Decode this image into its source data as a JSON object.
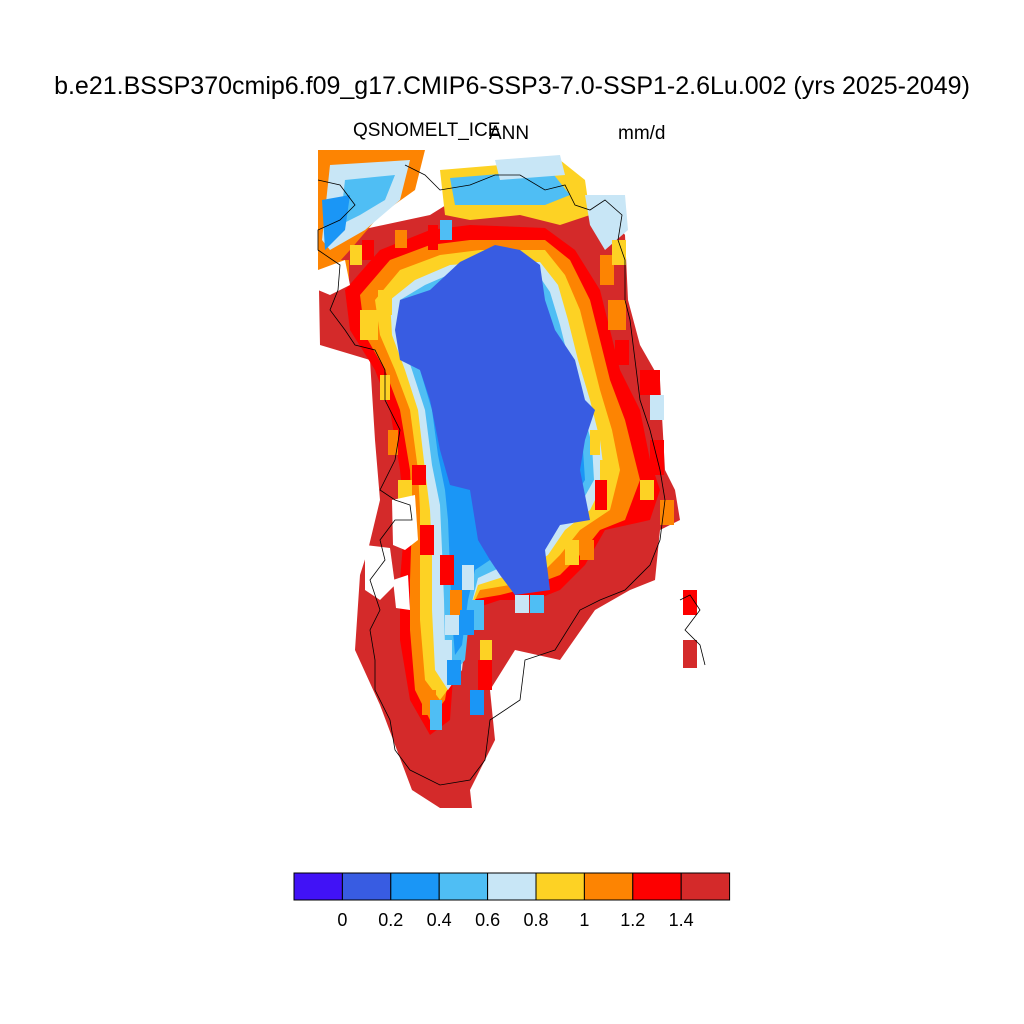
{
  "title": "b.e21.BSSP370cmip6.f09_g17.CMIP6-SSP3-7.0-SSP1-2.6Lu.002 (yrs 2025-2049)",
  "variable": "QSNOMELT_ICE",
  "season": "ANN",
  "units": "mm/d",
  "colorbar": {
    "colors": [
      "#4112f6",
      "#385ce2",
      "#1a96f6",
      "#4fbef4",
      "#c8e6f6",
      "#fdd224",
      "#fd8402",
      "#fd0000",
      "#d42a2a"
    ],
    "tick_labels": [
      "0",
      "0.2",
      "0.4",
      "0.6",
      "0.8",
      "1",
      "1.2",
      "1.4"
    ]
  },
  "map": {
    "region": "Greenland",
    "field": "QSNOMELT_ICE annual mean",
    "class_ranges": [
      "<0",
      "0-0.2",
      "0.2-0.4",
      "0.4-0.6",
      "0.6-0.8",
      "0.8-1",
      "1-1.2",
      "1.2-1.4",
      ">1.4"
    ],
    "interior_class": "0-0.2",
    "margin_classes": [
      "1.2-1.4",
      ">1.4"
    ]
  }
}
